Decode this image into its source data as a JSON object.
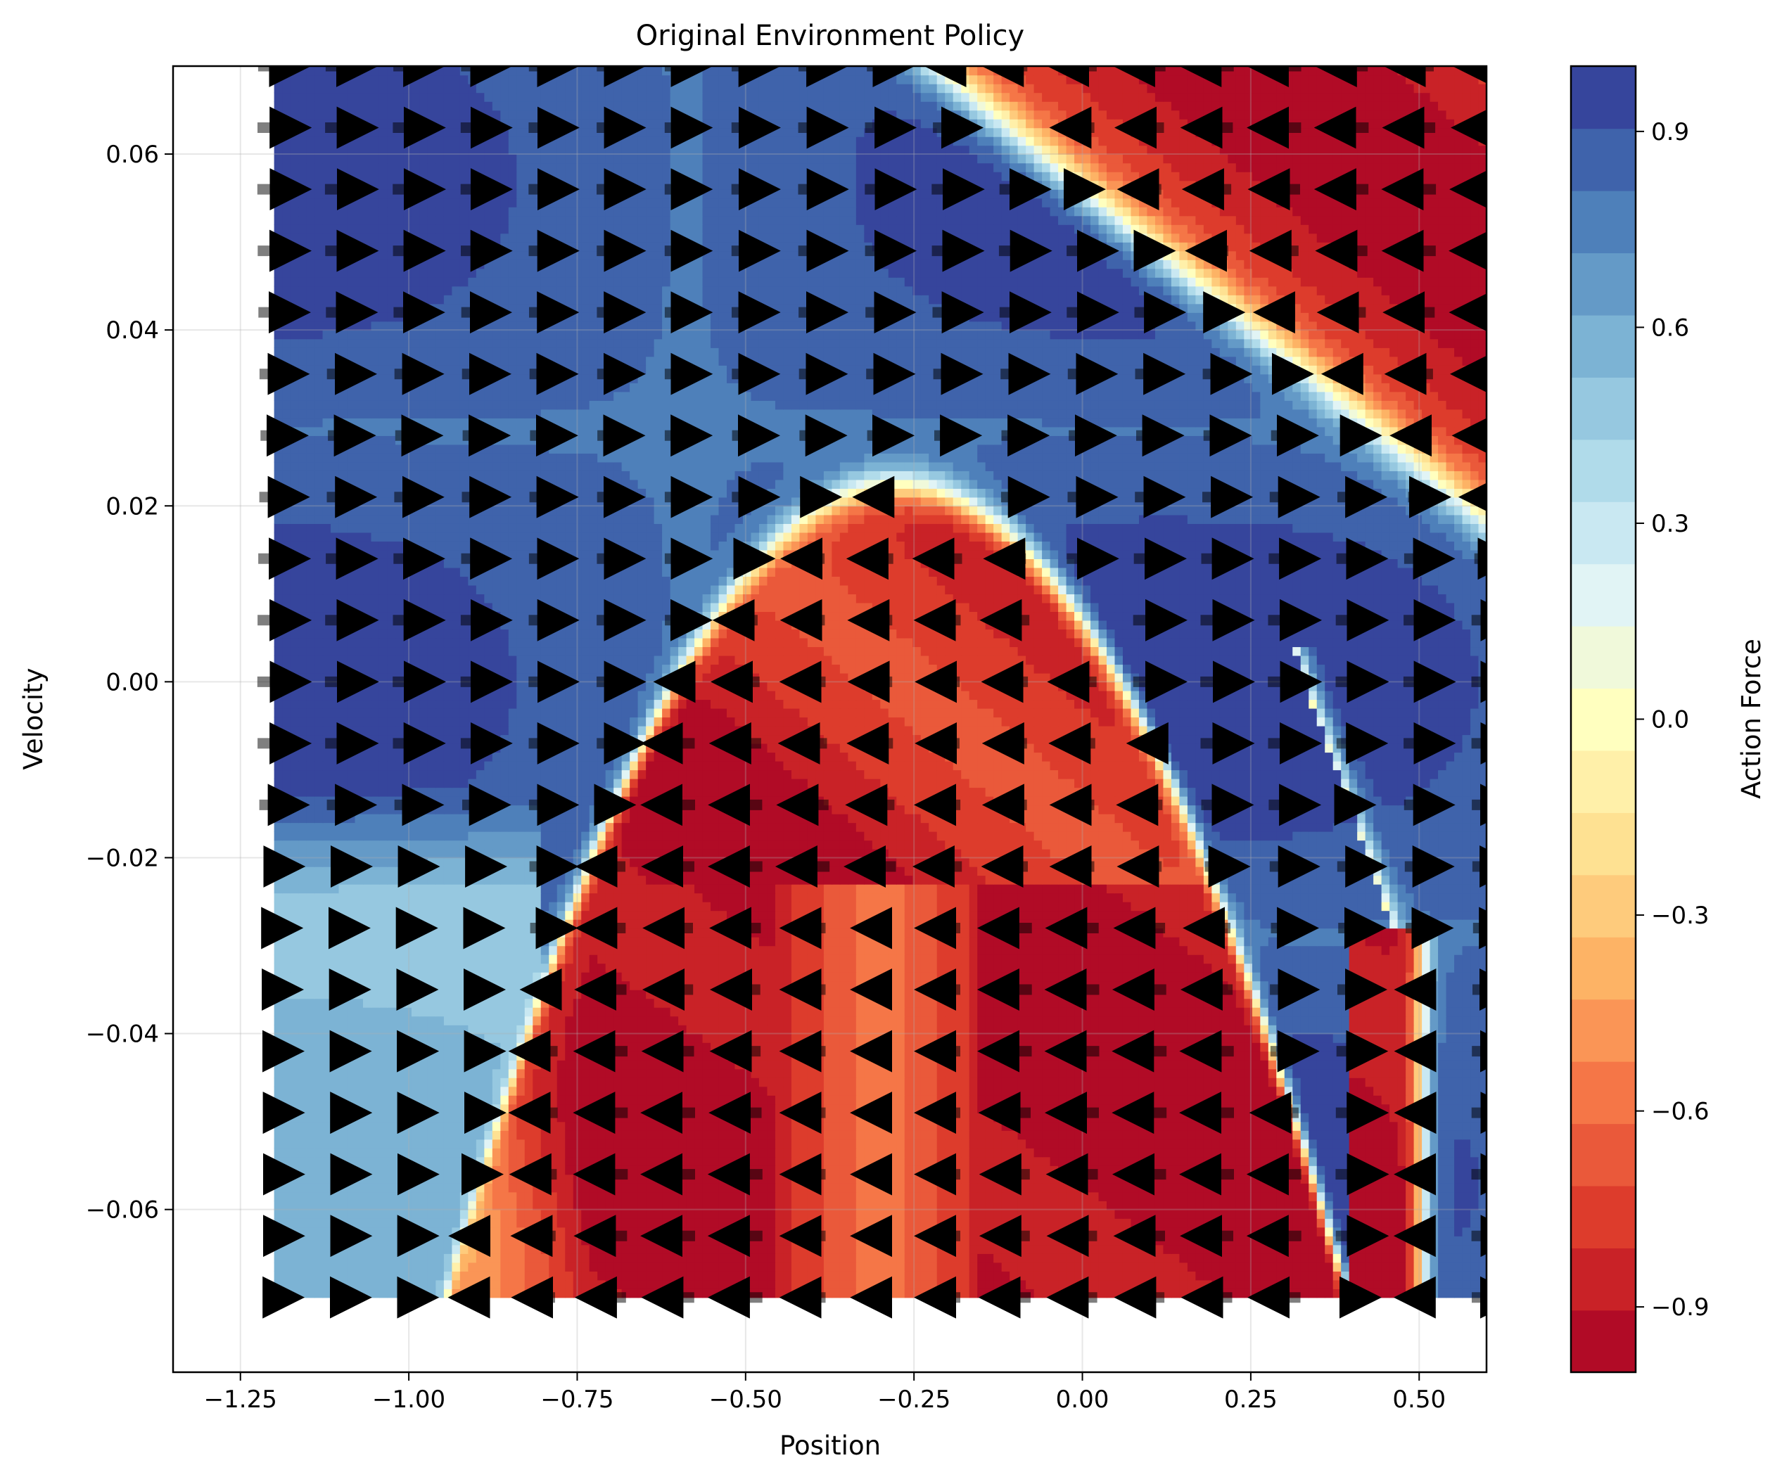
{
  "chart_data": {
    "type": "heatmap",
    "title": "Original Environment Policy",
    "xlabel": "Position",
    "ylabel": "Velocity",
    "colorbar_label": "Action Force",
    "xlim": [
      -1.35,
      0.6
    ],
    "ylim": [
      -0.0785,
      0.07
    ],
    "data_extent": {
      "x": [
        -1.2,
        0.6
      ],
      "y": [
        -0.07,
        0.07
      ]
    },
    "x_ticks": [
      -1.25,
      -1.0,
      -0.75,
      -0.5,
      -0.25,
      0.0,
      0.25,
      0.5
    ],
    "x_tick_labels": [
      "−1.25",
      "−1.00",
      "−0.75",
      "−0.50",
      "−0.25",
      "0.00",
      "0.25",
      "0.50"
    ],
    "y_ticks": [
      -0.06,
      -0.04,
      -0.02,
      0.0,
      0.02,
      0.04,
      0.06
    ],
    "y_tick_labels": [
      "−0.06",
      "−0.04",
      "−0.02",
      "0.00",
      "0.02",
      "0.04",
      "0.06"
    ],
    "colorbar_range": [
      -1.0,
      1.0
    ],
    "colorbar_ticks": [
      -0.9,
      -0.6,
      -0.3,
      0.0,
      0.3,
      0.6,
      0.9
    ],
    "colorbar_tick_labels": [
      "−0.9",
      "−0.6",
      "−0.3",
      "0.0",
      "0.3",
      "0.6",
      "0.9"
    ],
    "colormap": "RdYlBu",
    "colormap_stops": [
      "#a50026",
      "#d73027",
      "#f46d43",
      "#fdae61",
      "#fee090",
      "#ffffbf",
      "#e0f3f8",
      "#abd9e9",
      "#74add1",
      "#4575b4",
      "#313695"
    ],
    "contour_levels": 21,
    "grid": true,
    "quiver_grid": {
      "x": [
        -1.2,
        -1.1,
        -1.0,
        -0.9,
        -0.8,
        -0.7,
        -0.6,
        -0.5,
        -0.4,
        -0.3,
        -0.2,
        -0.1,
        0.0,
        0.1,
        0.2,
        0.3,
        0.4,
        0.5,
        0.6
      ],
      "y": [
        -0.07,
        -0.063,
        -0.056,
        -0.049,
        -0.042,
        -0.035,
        -0.028,
        -0.021,
        -0.014,
        -0.007,
        0.0,
        0.007,
        0.014,
        0.021,
        0.028,
        0.035,
        0.042,
        0.049,
        0.056,
        0.063,
        0.07
      ]
    },
    "arrow_color": "#000000",
    "arrow_opacity": 0.5
  }
}
